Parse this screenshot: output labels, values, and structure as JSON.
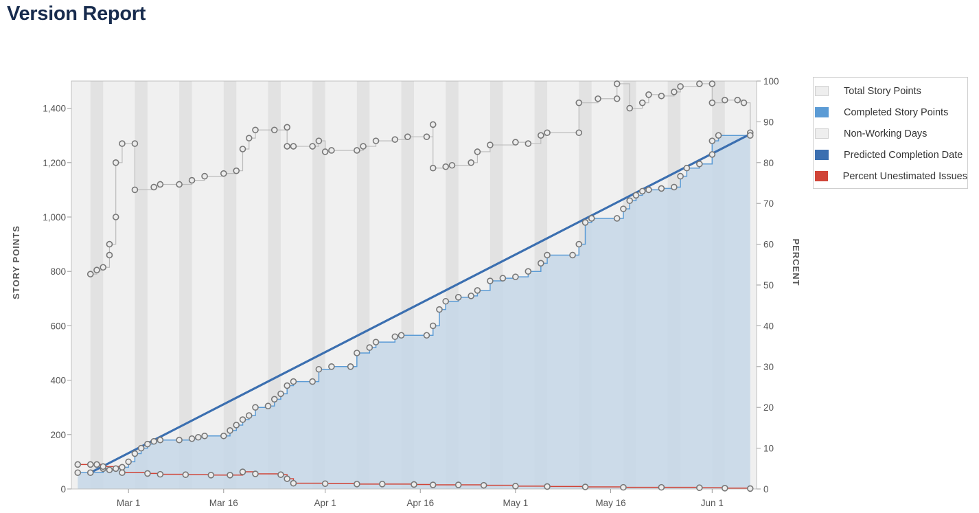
{
  "page": {
    "title": "Version Report"
  },
  "legend": [
    {
      "label": "Total Story Points",
      "color": "#eeeeee"
    },
    {
      "label": "Completed Story Points",
      "color": "#5b9bd5"
    },
    {
      "label": "Non-Working Days",
      "color": "#eeeeee"
    },
    {
      "label": "Predicted Completion Date",
      "color": "#3b6fb0"
    },
    {
      "label": "Percent Unestimated Issues",
      "color": "#d04437"
    }
  ],
  "chart_data": {
    "type": "area",
    "ylabel": "STORY POINTS",
    "y2label": "PERCENT",
    "ylim": [
      0,
      1500
    ],
    "y2lim": [
      0,
      100
    ],
    "yticks": [
      0,
      200,
      400,
      600,
      800,
      1000,
      1200,
      1400
    ],
    "yticklabels": [
      "0",
      "200",
      "400",
      "600",
      "800",
      "1,000",
      "1,200",
      "1,400"
    ],
    "y2ticks": [
      0,
      10,
      20,
      30,
      40,
      50,
      60,
      70,
      80,
      90,
      100
    ],
    "xlim": [
      "2019-02-20",
      "2019-06-08"
    ],
    "xticks": [
      "2019-03-01",
      "2019-03-16",
      "2019-04-01",
      "2019-04-16",
      "2019-05-01",
      "2019-05-16",
      "2019-06-01"
    ],
    "xticklabels": [
      "Mar 1",
      "Mar 16",
      "Apr 1",
      "Apr 16",
      "May 1",
      "May 16",
      "Jun 1"
    ],
    "non_working_days": [
      [
        "2019-02-23",
        "2019-02-25"
      ],
      [
        "2019-03-02",
        "2019-03-04"
      ],
      [
        "2019-03-09",
        "2019-03-11"
      ],
      [
        "2019-03-16",
        "2019-03-18"
      ],
      [
        "2019-03-23",
        "2019-03-25"
      ],
      [
        "2019-03-30",
        "2019-04-01"
      ],
      [
        "2019-04-06",
        "2019-04-08"
      ],
      [
        "2019-04-13",
        "2019-04-15"
      ],
      [
        "2019-04-20",
        "2019-04-22"
      ],
      [
        "2019-04-27",
        "2019-04-29"
      ],
      [
        "2019-05-04",
        "2019-05-06"
      ],
      [
        "2019-05-11",
        "2019-05-13"
      ],
      [
        "2019-05-18",
        "2019-05-20"
      ],
      [
        "2019-05-25",
        "2019-05-27"
      ],
      [
        "2019-06-01",
        "2019-06-03"
      ]
    ],
    "series": [
      {
        "name": "Total Story Points",
        "axis": "left",
        "color": "#bbbbbb",
        "points": [
          [
            "2019-02-23",
            790
          ],
          [
            "2019-02-24",
            805
          ],
          [
            "2019-02-25",
            815
          ],
          [
            "2019-02-26",
            860
          ],
          [
            "2019-02-26",
            900
          ],
          [
            "2019-02-27",
            1000
          ],
          [
            "2019-02-27",
            1200
          ],
          [
            "2019-02-28",
            1270
          ],
          [
            "2019-03-02",
            1270
          ],
          [
            "2019-03-02",
            1100
          ],
          [
            "2019-03-05",
            1110
          ],
          [
            "2019-03-06",
            1120
          ],
          [
            "2019-03-09",
            1120
          ],
          [
            "2019-03-11",
            1135
          ],
          [
            "2019-03-13",
            1150
          ],
          [
            "2019-03-16",
            1160
          ],
          [
            "2019-03-18",
            1170
          ],
          [
            "2019-03-19",
            1250
          ],
          [
            "2019-03-20",
            1290
          ],
          [
            "2019-03-21",
            1320
          ],
          [
            "2019-03-24",
            1320
          ],
          [
            "2019-03-26",
            1330
          ],
          [
            "2019-03-26",
            1260
          ],
          [
            "2019-03-27",
            1260
          ],
          [
            "2019-03-30",
            1260
          ],
          [
            "2019-03-31",
            1280
          ],
          [
            "2019-04-01",
            1240
          ],
          [
            "2019-04-02",
            1245
          ],
          [
            "2019-04-06",
            1245
          ],
          [
            "2019-04-07",
            1260
          ],
          [
            "2019-04-09",
            1280
          ],
          [
            "2019-04-12",
            1285
          ],
          [
            "2019-04-14",
            1295
          ],
          [
            "2019-04-17",
            1295
          ],
          [
            "2019-04-18",
            1340
          ],
          [
            "2019-04-18",
            1180
          ],
          [
            "2019-04-20",
            1185
          ],
          [
            "2019-04-21",
            1190
          ],
          [
            "2019-04-24",
            1200
          ],
          [
            "2019-04-25",
            1240
          ],
          [
            "2019-04-27",
            1265
          ],
          [
            "2019-05-01",
            1275
          ],
          [
            "2019-05-03",
            1270
          ],
          [
            "2019-05-05",
            1300
          ],
          [
            "2019-05-06",
            1310
          ],
          [
            "2019-05-11",
            1310
          ],
          [
            "2019-05-11",
            1420
          ],
          [
            "2019-05-14",
            1435
          ],
          [
            "2019-05-17",
            1435
          ],
          [
            "2019-05-17",
            1490
          ],
          [
            "2019-05-19",
            1400
          ],
          [
            "2019-05-21",
            1420
          ],
          [
            "2019-05-22",
            1450
          ],
          [
            "2019-05-24",
            1445
          ],
          [
            "2019-05-26",
            1460
          ],
          [
            "2019-05-27",
            1480
          ],
          [
            "2019-05-30",
            1490
          ],
          [
            "2019-06-01",
            1490
          ],
          [
            "2019-06-01",
            1420
          ],
          [
            "2019-06-03",
            1430
          ],
          [
            "2019-06-05",
            1430
          ],
          [
            "2019-06-06",
            1420
          ],
          [
            "2019-06-07",
            1310
          ]
        ]
      },
      {
        "name": "Completed Story Points",
        "axis": "left",
        "color": "#5b9bd5",
        "points": [
          [
            "2019-02-21",
            60
          ],
          [
            "2019-02-23",
            60
          ],
          [
            "2019-02-25",
            75
          ],
          [
            "2019-02-26",
            70
          ],
          [
            "2019-02-27",
            75
          ],
          [
            "2019-02-28",
            80
          ],
          [
            "2019-03-01",
            100
          ],
          [
            "2019-03-02",
            130
          ],
          [
            "2019-03-03",
            150
          ],
          [
            "2019-03-04",
            165
          ],
          [
            "2019-03-05",
            175
          ],
          [
            "2019-03-06",
            180
          ],
          [
            "2019-03-09",
            180
          ],
          [
            "2019-03-11",
            185
          ],
          [
            "2019-03-12",
            190
          ],
          [
            "2019-03-13",
            195
          ],
          [
            "2019-03-16",
            195
          ],
          [
            "2019-03-17",
            215
          ],
          [
            "2019-03-18",
            235
          ],
          [
            "2019-03-19",
            255
          ],
          [
            "2019-03-20",
            270
          ],
          [
            "2019-03-21",
            300
          ],
          [
            "2019-03-23",
            305
          ],
          [
            "2019-03-24",
            330
          ],
          [
            "2019-03-25",
            350
          ],
          [
            "2019-03-26",
            380
          ],
          [
            "2019-03-27",
            395
          ],
          [
            "2019-03-30",
            395
          ],
          [
            "2019-03-31",
            440
          ],
          [
            "2019-04-02",
            450
          ],
          [
            "2019-04-05",
            450
          ],
          [
            "2019-04-06",
            500
          ],
          [
            "2019-04-08",
            520
          ],
          [
            "2019-04-09",
            540
          ],
          [
            "2019-04-12",
            560
          ],
          [
            "2019-04-13",
            565
          ],
          [
            "2019-04-17",
            565
          ],
          [
            "2019-04-18",
            600
          ],
          [
            "2019-04-19",
            660
          ],
          [
            "2019-04-20",
            690
          ],
          [
            "2019-04-22",
            705
          ],
          [
            "2019-04-24",
            710
          ],
          [
            "2019-04-25",
            730
          ],
          [
            "2019-04-27",
            765
          ],
          [
            "2019-04-29",
            775
          ],
          [
            "2019-05-01",
            780
          ],
          [
            "2019-05-03",
            800
          ],
          [
            "2019-05-05",
            830
          ],
          [
            "2019-05-06",
            860
          ],
          [
            "2019-05-10",
            860
          ],
          [
            "2019-05-11",
            900
          ],
          [
            "2019-05-12",
            980
          ],
          [
            "2019-05-13",
            995
          ],
          [
            "2019-05-17",
            995
          ],
          [
            "2019-05-18",
            1030
          ],
          [
            "2019-05-19",
            1060
          ],
          [
            "2019-05-20",
            1080
          ],
          [
            "2019-05-21",
            1095
          ],
          [
            "2019-05-22",
            1100
          ],
          [
            "2019-05-24",
            1105
          ],
          [
            "2019-05-26",
            1110
          ],
          [
            "2019-05-27",
            1150
          ],
          [
            "2019-05-28",
            1180
          ],
          [
            "2019-05-30",
            1195
          ],
          [
            "2019-06-01",
            1230
          ],
          [
            "2019-06-01",
            1280
          ],
          [
            "2019-06-02",
            1300
          ],
          [
            "2019-06-07",
            1300
          ]
        ]
      },
      {
        "name": "Predicted Completion Date",
        "axis": "left",
        "color": "#3b6fb0",
        "points": [
          [
            "2019-02-23",
            60
          ],
          [
            "2019-06-07",
            1305
          ]
        ]
      },
      {
        "name": "Percent Unestimated Issues",
        "axis": "right",
        "color": "#d04437",
        "points": [
          [
            "2019-02-21",
            6
          ],
          [
            "2019-02-23",
            6
          ],
          [
            "2019-02-24",
            6
          ],
          [
            "2019-02-25",
            5.5
          ],
          [
            "2019-02-28",
            4
          ],
          [
            "2019-03-04",
            3.8
          ],
          [
            "2019-03-06",
            3.6
          ],
          [
            "2019-03-10",
            3.5
          ],
          [
            "2019-03-14",
            3.4
          ],
          [
            "2019-03-17",
            3.4
          ],
          [
            "2019-03-19",
            4.2
          ],
          [
            "2019-03-21",
            3.7
          ],
          [
            "2019-03-25",
            3.5
          ],
          [
            "2019-03-26",
            2.5
          ],
          [
            "2019-03-27",
            1.4
          ],
          [
            "2019-04-01",
            1.3
          ],
          [
            "2019-04-06",
            1.2
          ],
          [
            "2019-04-10",
            1.2
          ],
          [
            "2019-04-15",
            1.1
          ],
          [
            "2019-04-18",
            1.0
          ],
          [
            "2019-04-22",
            1.0
          ],
          [
            "2019-04-26",
            0.9
          ],
          [
            "2019-05-01",
            0.7
          ],
          [
            "2019-05-06",
            0.6
          ],
          [
            "2019-05-12",
            0.5
          ],
          [
            "2019-05-18",
            0.4
          ],
          [
            "2019-05-24",
            0.4
          ],
          [
            "2019-05-30",
            0.3
          ],
          [
            "2019-06-03",
            0.2
          ],
          [
            "2019-06-07",
            0.1
          ]
        ]
      }
    ]
  }
}
